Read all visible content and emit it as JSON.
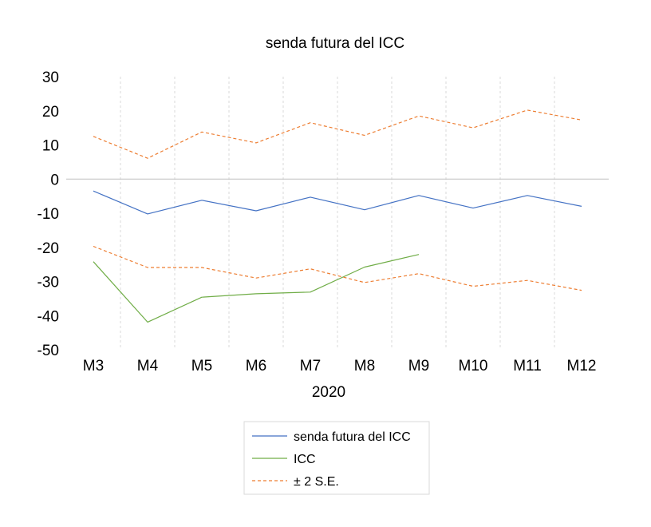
{
  "chart_data": {
    "type": "line",
    "title": "senda futura del ICC",
    "xlabel": "2020",
    "ylabel": "",
    "categories": [
      "M3",
      "M4",
      "M5",
      "M6",
      "M7",
      "M8",
      "M9",
      "M10",
      "M11",
      "M12"
    ],
    "ylim": [
      -50,
      30
    ],
    "yticks": [
      "30",
      "20",
      "10",
      "0",
      "-10",
      "-20",
      "-30",
      "-40",
      "-50"
    ],
    "grid": "vertical dashed",
    "legend_position": "bottom",
    "series": [
      {
        "name": "senda futura del ICC",
        "color": "#4472c4",
        "style": "solid",
        "values": [
          -3.5,
          -10.2,
          -6.2,
          -9.3,
          -5.3,
          -9.0,
          -4.8,
          -8.5,
          -4.8,
          -8.0
        ]
      },
      {
        "name": "ICC",
        "color": "#70ad47",
        "style": "solid",
        "values": [
          -24.2,
          -41.9,
          -34.6,
          -33.6,
          -33.1,
          -25.8,
          -22.1,
          null,
          null,
          null
        ]
      },
      {
        "name": "± 2 S.E.",
        "color": "#ed7d31",
        "style": "dashed",
        "values": [
          12.5,
          6.1,
          13.8,
          10.6,
          16.5,
          12.8,
          18.5,
          15.0,
          20.2,
          17.3
        ]
      },
      {
        "name": "",
        "legend": false,
        "color": "#ed7d31",
        "style": "dashed",
        "values": [
          -19.7,
          -25.9,
          -25.9,
          -29.0,
          -26.3,
          -30.3,
          -27.7,
          -31.4,
          -29.7,
          -32.6
        ]
      }
    ]
  }
}
